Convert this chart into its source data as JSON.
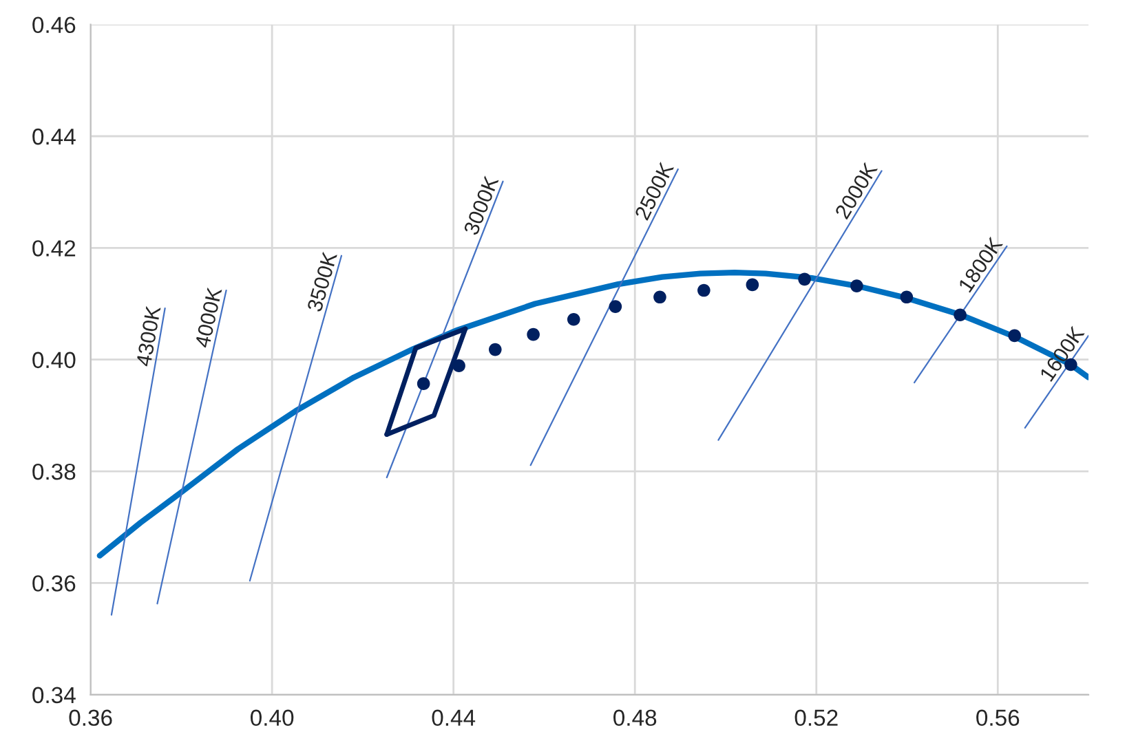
{
  "chart_data": {
    "type": "line",
    "xlim": [
      0.36,
      0.58
    ],
    "ylim": [
      0.34,
      0.46
    ],
    "xticks": [
      {
        "value": 0.36,
        "label": "0.36"
      },
      {
        "value": 0.4,
        "label": "0.40"
      },
      {
        "value": 0.44,
        "label": "0.44"
      },
      {
        "value": 0.48,
        "label": "0.48"
      },
      {
        "value": 0.52,
        "label": "0.52"
      },
      {
        "value": 0.56,
        "label": "0.56"
      }
    ],
    "yticks": [
      {
        "value": 0.34,
        "label": "0.34"
      },
      {
        "value": 0.36,
        "label": "0.36"
      },
      {
        "value": 0.38,
        "label": "0.38"
      },
      {
        "value": 0.4,
        "label": "0.40"
      },
      {
        "value": 0.42,
        "label": "0.42"
      },
      {
        "value": 0.44,
        "label": "0.44"
      },
      {
        "value": 0.46,
        "label": "0.46"
      }
    ],
    "grid": true,
    "series": [
      {
        "color": "#0070c0",
        "x": [
          0.362,
          0.371,
          0.3804,
          0.3925,
          0.4052,
          0.418,
          0.4311,
          0.4409,
          0.458,
          0.4763,
          0.486,
          0.4944,
          0.502,
          0.5088,
          0.519,
          0.5289,
          0.54,
          0.5519,
          0.564,
          0.5761,
          0.58
        ],
        "values": [
          0.3649,
          0.3708,
          0.3765,
          0.384,
          0.3908,
          0.3968,
          0.4019,
          0.4053,
          0.41,
          0.4135,
          0.4148,
          0.4154,
          0.4156,
          0.4154,
          0.4146,
          0.4132,
          0.411,
          0.408,
          0.404,
          0.3991,
          0.3968
        ]
      },
      {
        "name": "4300K",
        "color": "#4472c4",
        "x": [
          0.3646,
          0.3764
        ],
        "values": [
          0.3543,
          0.4092
        ]
      },
      {
        "name": "4000K",
        "color": "#4472c4",
        "x": [
          0.3747,
          0.3899
        ],
        "values": [
          0.3563,
          0.4124
        ]
      },
      {
        "name": "3500K",
        "color": "#4472c4",
        "x": [
          0.3951,
          0.4153
        ],
        "values": [
          0.3604,
          0.4186
        ]
      },
      {
        "name": "3000K",
        "color": "#4472c4",
        "x": [
          0.4253,
          0.4509
        ],
        "values": [
          0.3789,
          0.4319
        ]
      },
      {
        "name": "2500K",
        "color": "#4472c4",
        "x": [
          0.457,
          0.4895
        ],
        "values": [
          0.3811,
          0.4341
        ]
      },
      {
        "name": "2000K",
        "color": "#4472c4",
        "x": [
          0.4984,
          0.5344
        ],
        "values": [
          0.3856,
          0.4338
        ]
      },
      {
        "name": "1800K",
        "color": "#4472c4",
        "x": [
          0.5416,
          0.562
        ],
        "values": [
          0.3959,
          0.4203
        ]
      },
      {
        "name": "1600K",
        "color": "#4472c4",
        "x": [
          0.566,
          0.58
        ],
        "values": [
          0.3878,
          0.4043
        ]
      },
      {
        "color": "#002060",
        "x": [
          0.4253,
          0.4317,
          0.4426
        ],
        "values": [
          0.3866,
          0.4021,
          0.4055
        ]
      },
      {
        "color": "#002060",
        "x": [
          0.4253,
          0.4357,
          0.4426
        ],
        "values": [
          0.3866,
          0.39,
          0.4055
        ]
      },
      {
        "type": "scatter",
        "color": "#002060",
        "marker": "circle",
        "x": [
          0.4334,
          0.4412,
          0.4492,
          0.4576,
          0.4665,
          0.4757,
          0.4855,
          0.4952,
          0.5059,
          0.5174,
          0.5289,
          0.5399,
          0.5517,
          0.5637,
          0.5761
        ],
        "values": [
          0.3957,
          0.3989,
          0.4018,
          0.4045,
          0.4072,
          0.4095,
          0.4112,
          0.4124,
          0.4134,
          0.4144,
          0.4132,
          0.4112,
          0.408,
          0.4043,
          0.3991
        ]
      }
    ]
  }
}
